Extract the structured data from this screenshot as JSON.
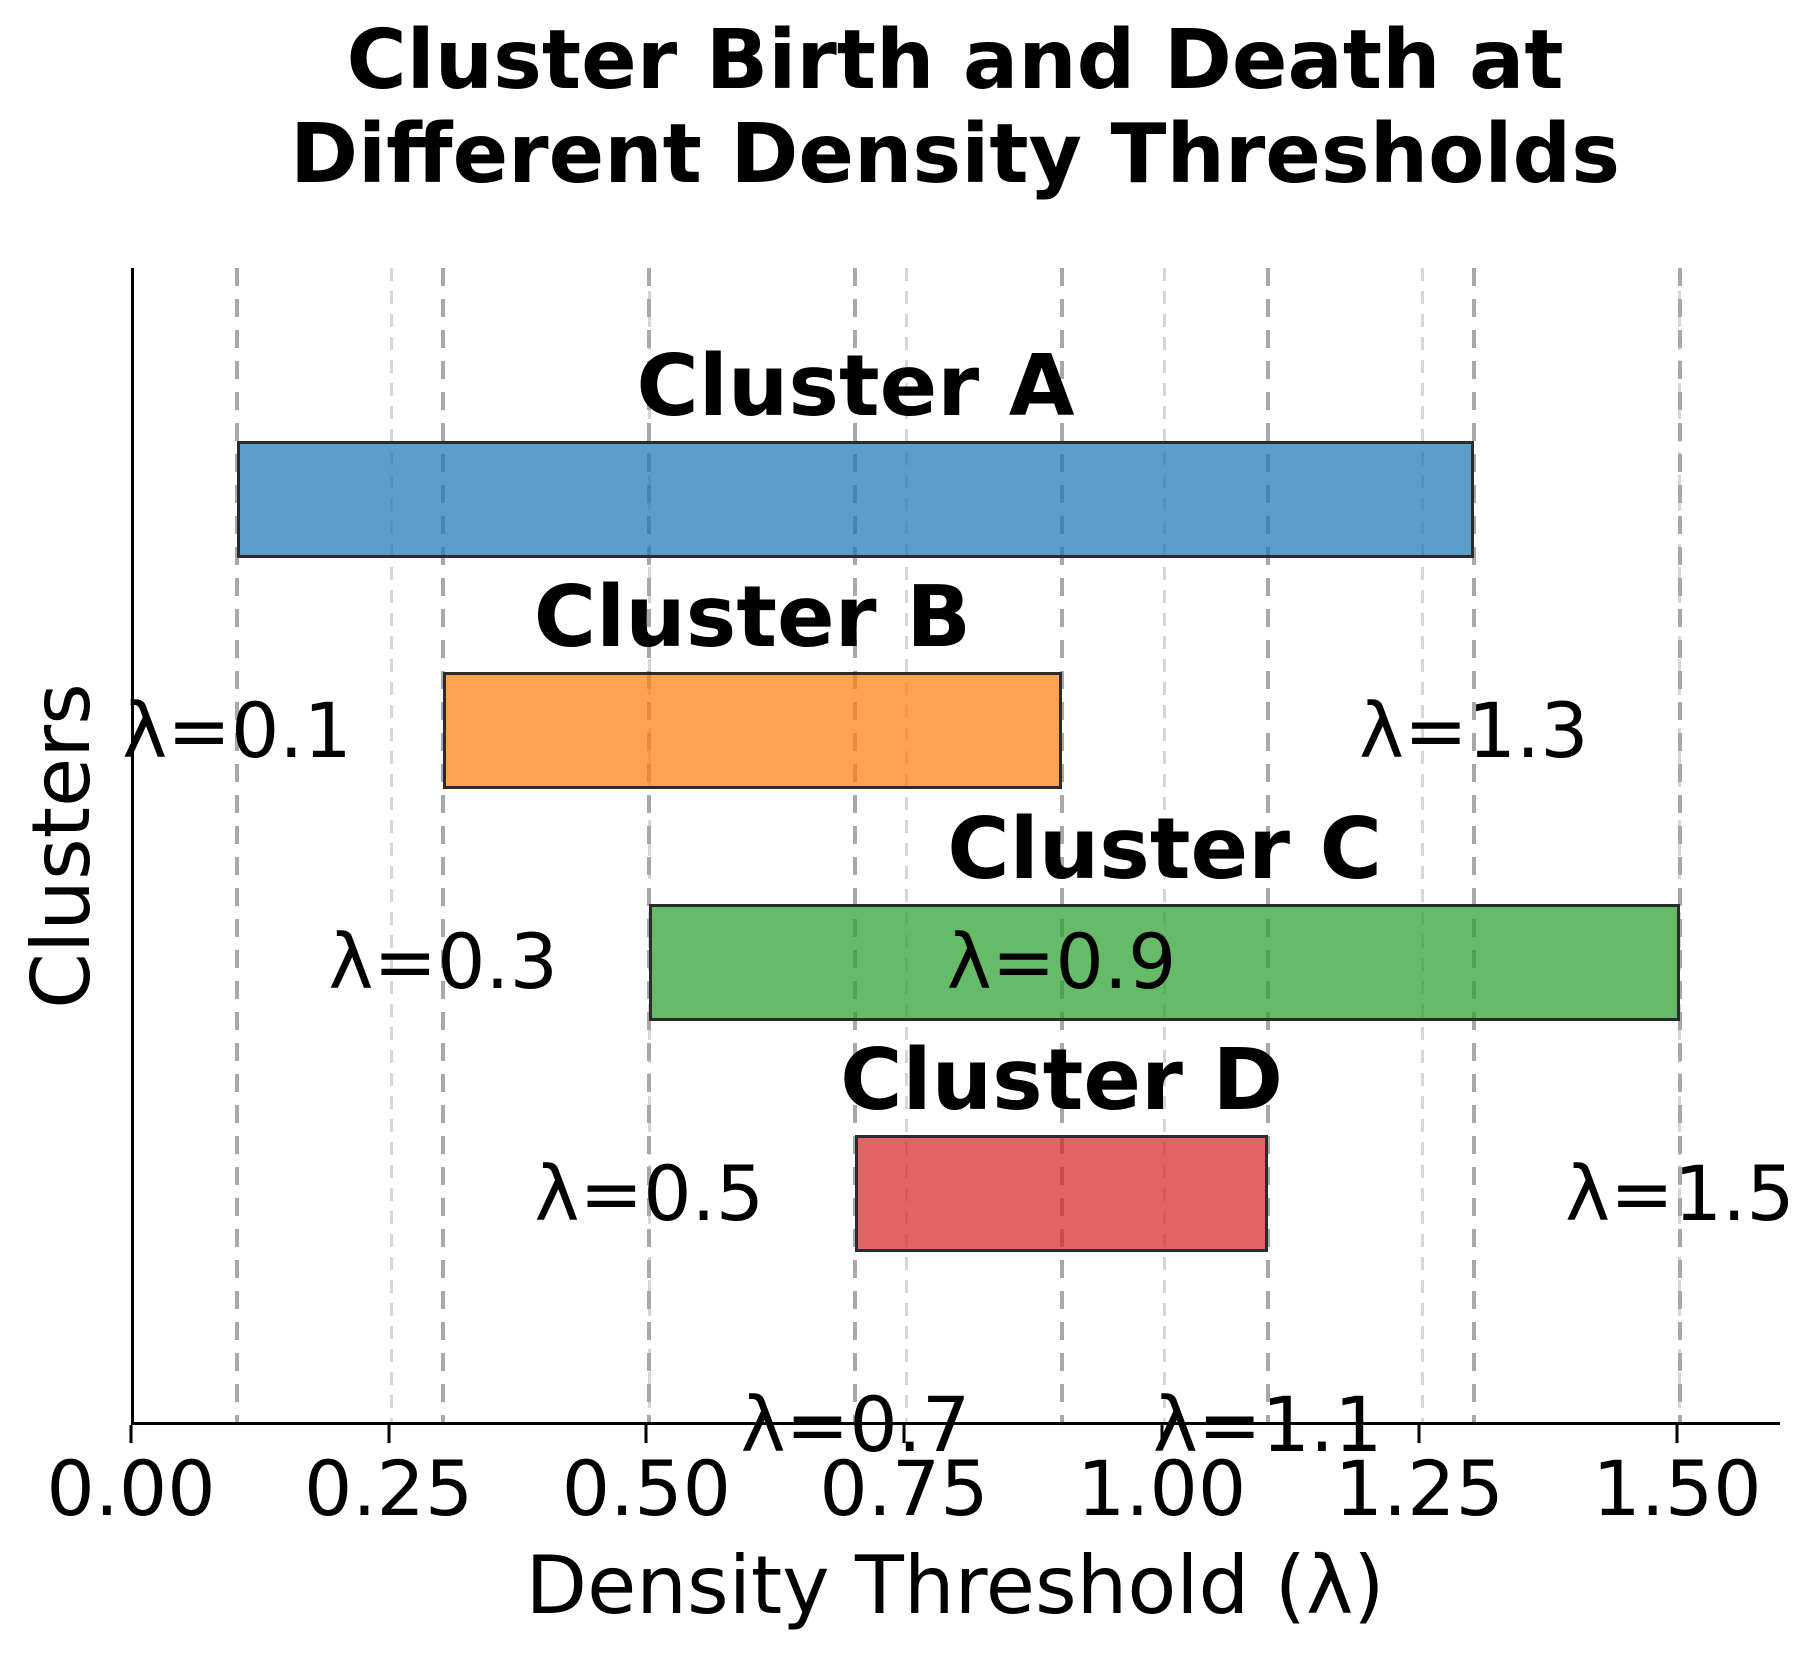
{
  "title_lines": [
    "Cluster Birth and Death at",
    "Different Density Thresholds"
  ],
  "chart_data": {
    "type": "bar",
    "orientation": "horizontal-interval",
    "title": "Cluster Birth and Death at Different Density Thresholds",
    "xlabel": "Density Threshold (λ)",
    "ylabel": "Clusters",
    "xlim": [
      0,
      1.6
    ],
    "grid": "vertical-dashed",
    "legend": "none",
    "xticks": {
      "values": [
        0,
        0.25,
        0.5,
        0.75,
        1.0,
        1.25,
        1.5
      ],
      "labels": [
        "0.00",
        "0.25",
        "0.50",
        "0.75",
        "1.00",
        "1.25",
        "1.50"
      ]
    },
    "gridline_colors": {
      "tick_lines": "#d6d6d6",
      "event_lines": "#a8a8a8"
    },
    "clusters": [
      {
        "name": "Cluster A",
        "birth": 0.1,
        "death": 1.3,
        "birth_label": "λ=0.1",
        "death_label": "λ=1.3",
        "fill": "rgba(31,119,180,0.72)",
        "fill_hex_on_white": "#5b9bc8",
        "edge": "#2b2b2b"
      },
      {
        "name": "Cluster B",
        "birth": 0.3,
        "death": 0.9,
        "birth_label": "λ=0.3",
        "death_label": "λ=0.9",
        "fill": "rgba(255,127,14,0.72)",
        "fill_hex_on_white": "#f9a45c",
        "edge": "#2b2b2b"
      },
      {
        "name": "Cluster C",
        "birth": 0.5,
        "death": 1.5,
        "birth_label": "λ=0.5",
        "death_label": "λ=1.5",
        "fill": "rgba(44,160,44,0.72)",
        "fill_hex_on_white": "#68bb6c",
        "edge": "#2b2b2b"
      },
      {
        "name": "Cluster D",
        "birth": 0.7,
        "death": 1.1,
        "birth_label": "λ=0.7",
        "death_label": "λ=1.1",
        "fill": "rgba(214,39,40,0.72)",
        "fill_hex_on_white": "#e06a6a",
        "edge": "#2b2b2b"
      }
    ]
  }
}
